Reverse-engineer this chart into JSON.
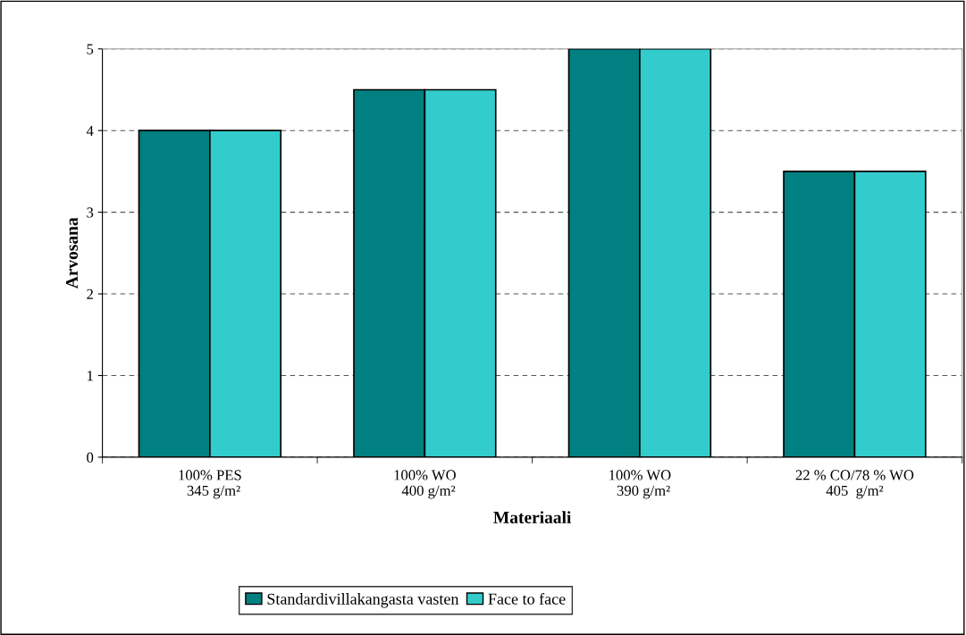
{
  "chart_data": {
    "type": "bar",
    "xlabel": "Materiaali",
    "ylabel": "Arvosana",
    "categories": [
      "100% PES\n  345 g/m²",
      "100% WO\n  400 g/m²",
      "100% WO\n  390 g/m²",
      "22 % CO/78 % WO\n405  g/m²"
    ],
    "series": [
      {
        "name": "Standardivillakangasta vasten",
        "color": "#008080",
        "values": [
          4,
          4.5,
          5,
          3.5
        ]
      },
      {
        "name": "Face to face",
        "color": "#33cccc",
        "values": [
          4,
          4.5,
          5,
          3.5
        ]
      }
    ],
    "ylim": [
      0,
      5
    ],
    "yticks": [
      0,
      1,
      2,
      3,
      4,
      5
    ],
    "grid": "y",
    "legend": "bottom"
  }
}
